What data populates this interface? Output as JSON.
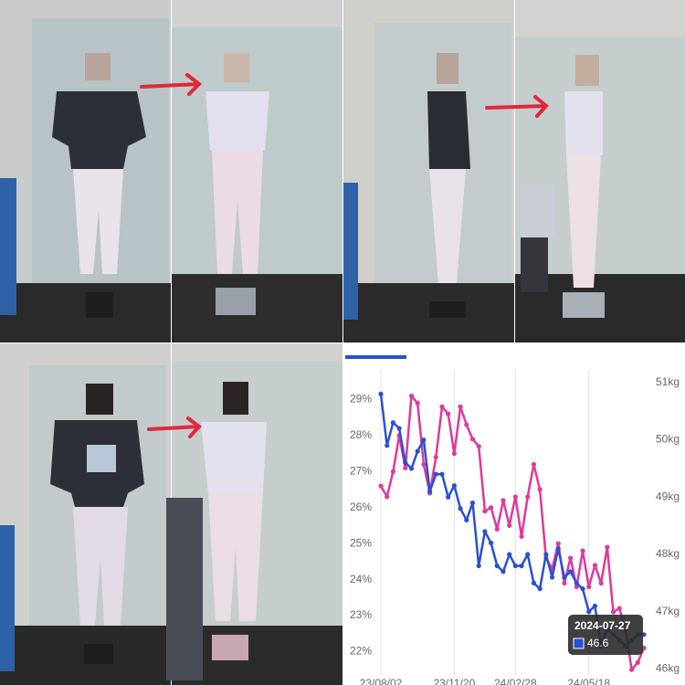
{
  "chart_data": {
    "type": "line",
    "categories": [
      "23/08/02",
      null,
      null,
      null,
      null,
      null,
      null,
      null,
      null,
      null,
      null,
      null,
      "23/11/20",
      null,
      null,
      null,
      null,
      null,
      null,
      null,
      null,
      null,
      "24/02/28",
      null,
      null,
      null,
      null,
      null,
      null,
      null,
      null,
      null,
      null,
      null,
      "24/05/18",
      null,
      null,
      null,
      null,
      null,
      null,
      null,
      null,
      null
    ],
    "series": [
      {
        "color": "#e0399a",
        "axis": "y",
        "values": [
          26.6,
          26.3,
          27.0,
          28.0,
          27.1,
          29.1,
          28.9,
          27.2,
          26.4,
          27.4,
          28.8,
          28.6,
          27.5,
          28.8,
          28.3,
          27.9,
          27.7,
          25.9,
          26.0,
          25.4,
          26.2,
          25.5,
          26.3,
          25.2,
          26.3,
          27.2,
          26.5,
          24.6,
          24.3,
          25.0,
          23.9,
          24.6,
          23.8,
          24.8,
          23.8,
          24.4,
          23.9,
          24.9,
          23.1,
          23.2,
          22.6,
          21.5,
          21.7,
          22.1
        ]
      },
      {
        "color": "#2a4fd6",
        "axis": "y2",
        "values": [
          50.8,
          49.9,
          50.3,
          50.2,
          49.6,
          49.5,
          49.8,
          50.0,
          49.1,
          49.4,
          49.4,
          49.0,
          49.2,
          48.8,
          48.6,
          48.9,
          47.8,
          48.4,
          48.2,
          47.8,
          47.7,
          48.0,
          47.8,
          47.8,
          48.0,
          47.5,
          47.4,
          48.0,
          47.6,
          48.1,
          47.6,
          47.7,
          47.5,
          47.4,
          47.0,
          47.1,
          46.4,
          46.7,
          46.6,
          46.5,
          46.4,
          46.5,
          46.6,
          46.6
        ]
      }
    ],
    "ylim": [
      21.2,
      29.95
    ],
    "yticks": [
      {
        "value": 22,
        "label": "22%"
      },
      {
        "value": 23,
        "label": "23%"
      },
      {
        "value": 24,
        "label": "24%"
      },
      {
        "value": 25,
        "label": "25%"
      },
      {
        "value": 26,
        "label": "26%"
      },
      {
        "value": 27,
        "label": "27%"
      },
      {
        "value": 28,
        "label": "28%"
      },
      {
        "value": 29,
        "label": "29%"
      }
    ],
    "y2lim": [
      45.8,
      51.3
    ],
    "y2ticks": [
      {
        "value": 46,
        "label": "46kg"
      },
      {
        "value": 47,
        "label": "47kg"
      },
      {
        "value": 48,
        "label": "48kg"
      },
      {
        "value": 49,
        "label": "49kg"
      },
      {
        "value": 50,
        "label": "50kg"
      },
      {
        "value": 51,
        "label": "51kg"
      }
    ],
    "grid": true,
    "tooltip": {
      "date": "2024-07-27",
      "value": "46.6"
    }
  }
}
